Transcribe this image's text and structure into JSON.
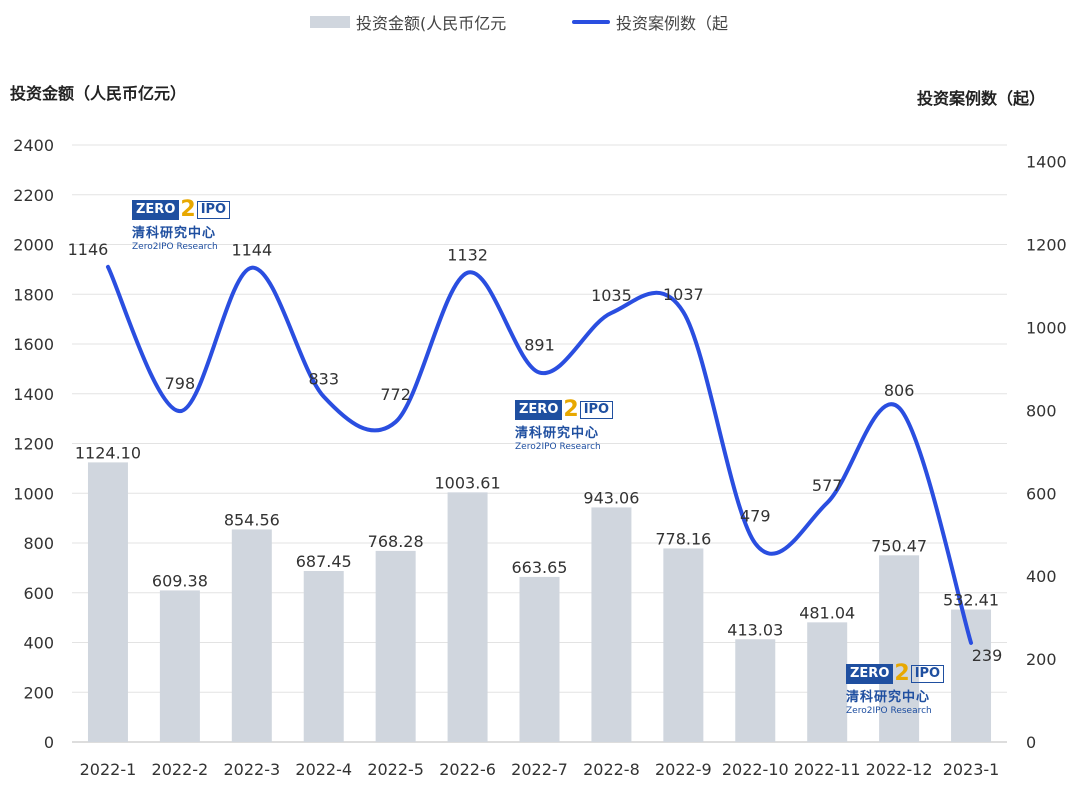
{
  "legend": {
    "bar_label": "投资金额(人民币亿元",
    "line_label": "投资案例数（起"
  },
  "axis_titles": {
    "left": "投资金额（人民币亿元）",
    "right": "投资案例数（起）"
  },
  "logo": {
    "zero": "ZERO",
    "two": "2",
    "ipo": "IPO",
    "cn": "清科研究中心",
    "en": "Zero2IPO Research"
  },
  "colors": {
    "bar": "#d0d6de",
    "line": "#2a4ee0",
    "grid": "#e3e3e3",
    "text": "#333333"
  },
  "chart_data": {
    "type": "bar",
    "categories": [
      "2022-1",
      "2022-2",
      "2022-3",
      "2022-4",
      "2022-5",
      "2022-6",
      "2022-7",
      "2022-8",
      "2022-9",
      "2022-10",
      "2022-11",
      "2022-12",
      "2023-1"
    ],
    "series": [
      {
        "name": "投资金额(人民币亿元",
        "type": "bar",
        "axis": "left",
        "values": [
          1124.1,
          609.38,
          854.56,
          687.45,
          768.28,
          1003.61,
          663.65,
          943.06,
          778.16,
          413.03,
          481.04,
          750.47,
          532.41
        ],
        "labels": [
          "1124.10",
          "609.38",
          "854.56",
          "687.45",
          "768.28",
          "1003.61",
          "663.65",
          "943.06",
          "778.16",
          "413.03",
          "481.04",
          "750.47",
          "532.41"
        ]
      },
      {
        "name": "投资案例数（起",
        "type": "line",
        "axis": "right",
        "smooth": true,
        "values": [
          1146,
          798,
          1144,
          833,
          772,
          1132,
          891,
          1035,
          1037,
          479,
          577,
          806,
          239
        ],
        "labels": [
          "1146",
          "798",
          "1144",
          "833",
          "772",
          "1132",
          "891",
          "1035",
          "1037",
          "479",
          "577",
          "806",
          "239"
        ]
      }
    ],
    "ylim_left": [
      0,
      2400
    ],
    "yticks_left": [
      0,
      200,
      400,
      600,
      800,
      1000,
      1200,
      1400,
      1600,
      1800,
      2000,
      2200,
      2400
    ],
    "ylim_right": [
      0,
      1440
    ],
    "yticks_right": [
      0,
      200,
      400,
      600,
      800,
      1000,
      1200,
      1400
    ],
    "grid": true,
    "legend_position": "top-center"
  }
}
